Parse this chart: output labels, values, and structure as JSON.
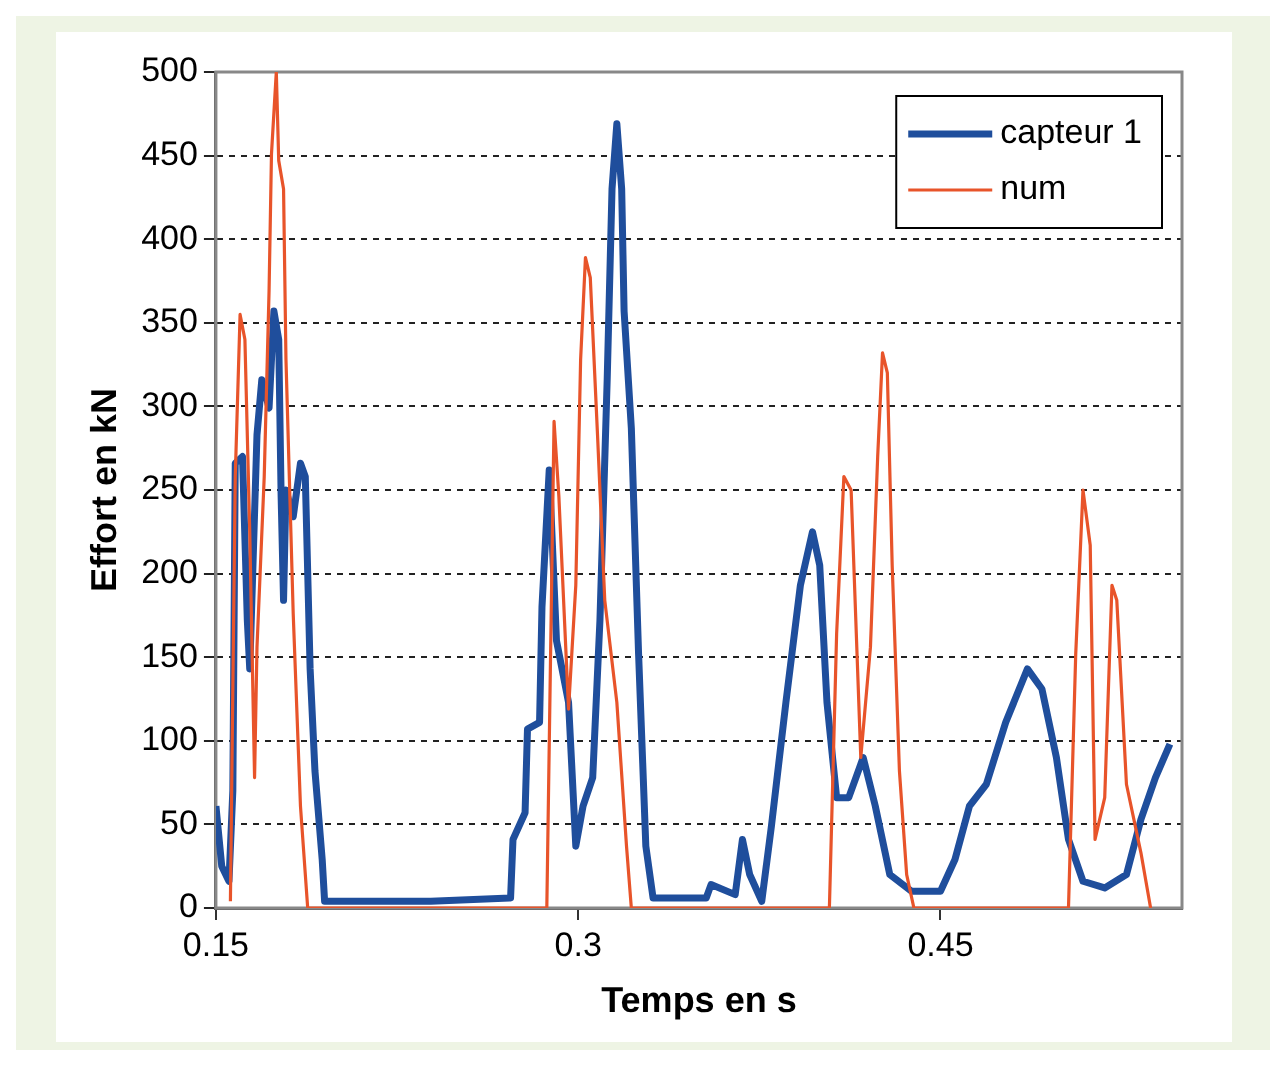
{
  "chart_data": {
    "type": "line",
    "xlabel": "Temps en s",
    "ylabel": "Effort en kN",
    "xlim": [
      0.15,
      0.55
    ],
    "xticks": [
      0.15,
      0.3,
      0.45
    ],
    "ylim": [
      0,
      500
    ],
    "yticks": [
      0,
      50,
      100,
      150,
      200,
      250,
      300,
      350,
      400,
      450,
      500
    ],
    "grid": "y",
    "legend": "top right",
    "marker": "none",
    "line_style": "solid",
    "series": [
      {
        "name": "capteur 1",
        "color": "#1f4e9c",
        "x": [
          0.15,
          0.1524,
          0.1554,
          0.157,
          0.158,
          0.161,
          0.163,
          0.164,
          0.167,
          0.169,
          0.172,
          0.174,
          0.176,
          0.177,
          0.178,
          0.179,
          0.182,
          0.185,
          0.187,
          0.189,
          0.191,
          0.194,
          0.195,
          0.239,
          0.272,
          0.273,
          0.278,
          0.279,
          0.284,
          0.285,
          0.288,
          0.291,
          0.296,
          0.299,
          0.302,
          0.306,
          0.309,
          0.312,
          0.314,
          0.316,
          0.318,
          0.319,
          0.322,
          0.325,
          0.328,
          0.331,
          0.353,
          0.355,
          0.365,
          0.368,
          0.371,
          0.376,
          0.38,
          0.386,
          0.392,
          0.397,
          0.4,
          0.403,
          0.407,
          0.412,
          0.418,
          0.423,
          0.429,
          0.438,
          0.45,
          0.456,
          0.462,
          0.469,
          0.477,
          0.486,
          0.492,
          0.498,
          0.503,
          0.509,
          0.518,
          0.527,
          0.533,
          0.539,
          0.545
        ],
        "values": [
          61,
          25,
          16,
          70,
          266,
          270,
          172,
          143,
          283,
          316,
          299,
          357,
          340,
          246,
          184,
          250,
          234,
          266,
          258,
          143,
          82,
          29,
          4,
          4,
          6,
          41,
          57,
          107,
          111,
          180,
          262,
          160,
          123,
          37,
          61,
          78,
          172,
          316,
          430,
          469,
          430,
          357,
          287,
          152,
          37,
          6,
          6,
          14,
          8,
          41,
          20,
          4,
          49,
          123,
          193,
          225,
          205,
          123,
          66,
          66,
          90,
          61,
          20,
          10,
          10,
          29,
          61,
          74,
          111,
          143,
          131,
          90,
          41,
          16,
          12,
          20,
          53,
          78,
          98
        ]
      },
      {
        "name": "num",
        "color": "#e8542a",
        "x": [
          0.156,
          0.158,
          0.16,
          0.162,
          0.164,
          0.166,
          0.167,
          0.17,
          0.172,
          0.173,
          0.175,
          0.176,
          0.178,
          0.179,
          0.182,
          0.185,
          0.188,
          0.287,
          0.29,
          0.292,
          0.296,
          0.299,
          0.301,
          0.303,
          0.305,
          0.308,
          0.311,
          0.316,
          0.32,
          0.322,
          0.404,
          0.407,
          0.41,
          0.413,
          0.417,
          0.421,
          0.424,
          0.426,
          0.428,
          0.43,
          0.433,
          0.436,
          0.439,
          0.503,
          0.506,
          0.509,
          0.512,
          0.514,
          0.518,
          0.521,
          0.523,
          0.527,
          0.533,
          0.537
        ],
        "values": [
          4,
          258,
          355,
          340,
          225,
          78,
          156,
          258,
          369,
          451,
          500,
          447,
          430,
          328,
          176,
          61,
          0,
          0,
          291,
          246,
          119,
          193,
          328,
          389,
          377,
          283,
          184,
          123,
          37,
          0,
          0,
          164,
          258,
          250,
          90,
          156,
          270,
          332,
          320,
          205,
          82,
          20,
          0,
          0,
          152,
          250,
          217,
          41,
          66,
          193,
          184,
          74,
          33,
          0
        ]
      }
    ]
  }
}
